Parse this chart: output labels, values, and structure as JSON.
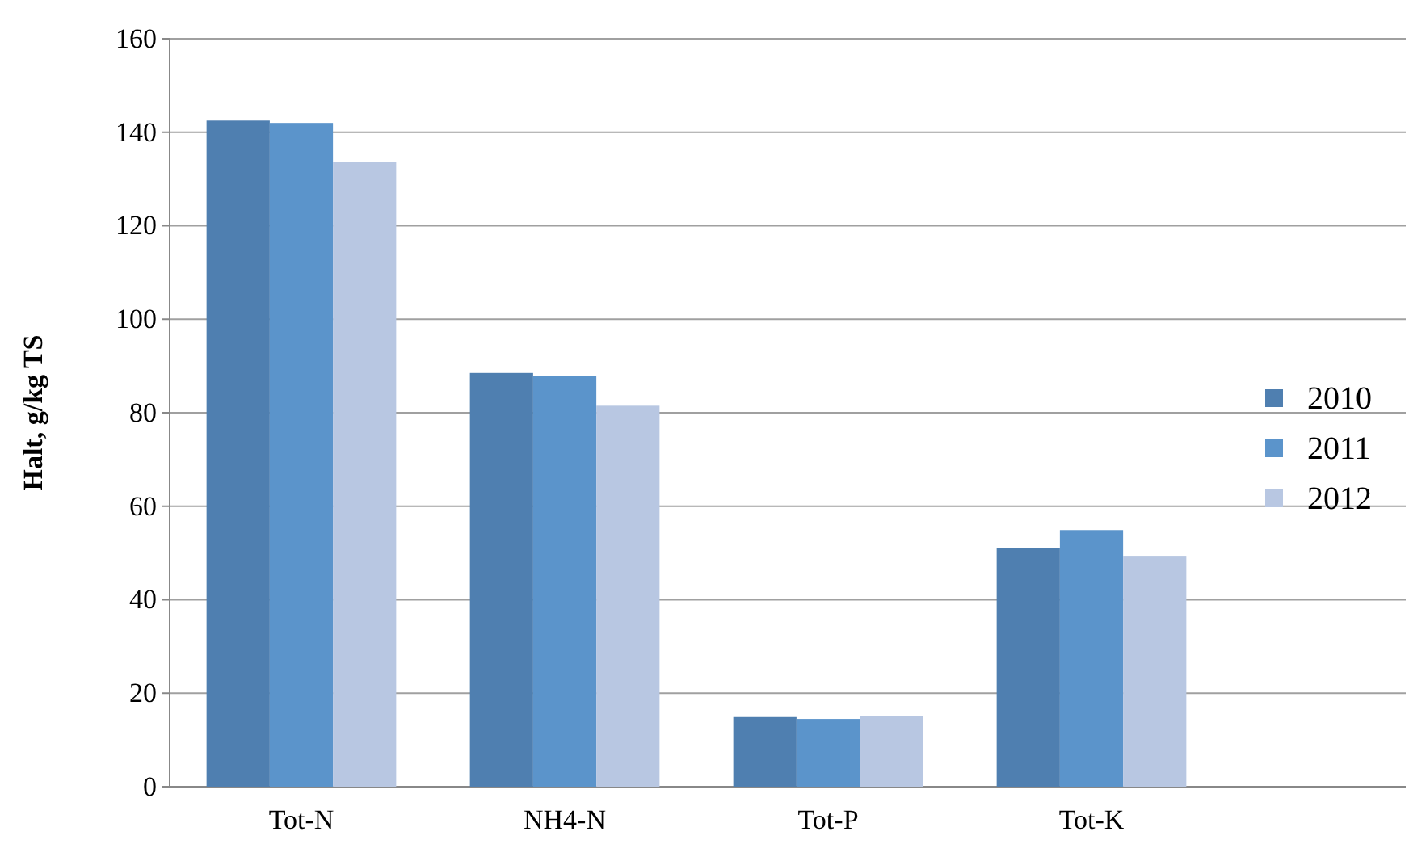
{
  "chart_data": {
    "type": "bar",
    "ylabel": "Halt, g/kg TS",
    "categories": [
      "Tot-N",
      "NH4-N",
      "Tot-P",
      "Tot-K"
    ],
    "series": [
      {
        "name": "2010",
        "color": "#4f7fb0",
        "values": [
          142.5,
          88.5,
          14.9,
          51.1
        ]
      },
      {
        "name": "2011",
        "color": "#5b94cb",
        "values": [
          142,
          87.8,
          14.5,
          54.9
        ]
      },
      {
        "name": "2012",
        "color": "#b8c7e2",
        "values": [
          133.7,
          81.5,
          15.2,
          49.4
        ]
      }
    ],
    "ylim": [
      0,
      160
    ],
    "yticks": [
      0,
      20,
      40,
      60,
      80,
      100,
      120,
      140,
      160
    ],
    "grid": "y",
    "legend": "right"
  }
}
